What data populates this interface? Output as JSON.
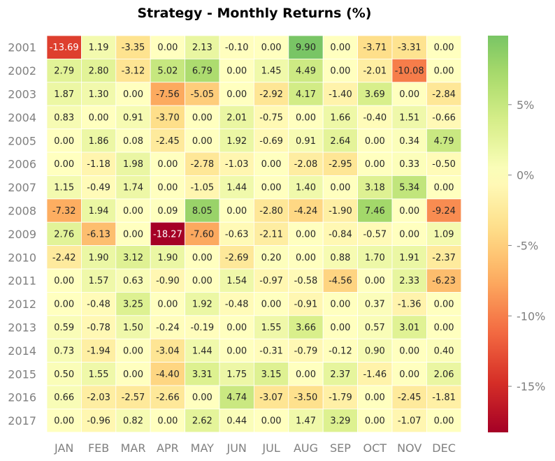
{
  "chart_data": {
    "type": "heatmap",
    "title": "Strategy - Monthly Returns (%)",
    "xlabel": "",
    "ylabel": "",
    "columns": [
      "JAN",
      "FEB",
      "MAR",
      "APR",
      "MAY",
      "JUN",
      "JUL",
      "AUG",
      "SEP",
      "OCT",
      "NOV",
      "DEC"
    ],
    "rows": [
      "2001",
      "2002",
      "2003",
      "2004",
      "2005",
      "2006",
      "2007",
      "2008",
      "2009",
      "2010",
      "2011",
      "2012",
      "2013",
      "2014",
      "2015",
      "2016",
      "2017"
    ],
    "values": [
      [
        -13.69,
        1.19,
        -3.35,
        0.0,
        2.13,
        -0.1,
        0.0,
        9.9,
        0.0,
        -3.71,
        -3.31,
        0.0
      ],
      [
        2.79,
        2.8,
        -3.12,
        5.02,
        6.79,
        0.0,
        1.45,
        4.49,
        0.0,
        -2.01,
        -10.08,
        0.0
      ],
      [
        1.87,
        1.3,
        0.0,
        -7.56,
        -5.05,
        0.0,
        -2.92,
        4.17,
        -1.4,
        3.69,
        0.0,
        -2.84
      ],
      [
        0.83,
        0.0,
        0.91,
        -3.7,
        0.0,
        2.01,
        -0.75,
        0.0,
        1.66,
        -0.4,
        1.51,
        -0.66
      ],
      [
        0.0,
        1.86,
        0.08,
        -2.45,
        0.0,
        1.92,
        -0.69,
        0.91,
        2.64,
        0.0,
        0.34,
        4.79
      ],
      [
        0.0,
        -1.18,
        1.98,
        0.0,
        -2.78,
        -1.03,
        0.0,
        -2.08,
        -2.95,
        0.0,
        0.33,
        -0.5
      ],
      [
        1.15,
        -0.49,
        1.74,
        0.0,
        -1.05,
        1.44,
        0.0,
        1.4,
        0.0,
        3.18,
        5.34,
        0.0
      ],
      [
        -7.32,
        1.94,
        0.0,
        0.09,
        8.05,
        0.0,
        -2.8,
        -4.24,
        -1.9,
        7.46,
        0.0,
        -9.24
      ],
      [
        2.76,
        -6.13,
        0.0,
        -18.27,
        -7.6,
        -0.63,
        -2.11,
        0.0,
        -0.84,
        -0.57,
        0.0,
        1.09
      ],
      [
        -2.42,
        1.9,
        3.12,
        1.9,
        0.0,
        -2.69,
        0.2,
        0.0,
        0.88,
        1.7,
        1.91,
        -2.37
      ],
      [
        0.0,
        1.57,
        0.63,
        -0.9,
        0.0,
        1.54,
        -0.97,
        -0.58,
        -4.56,
        0.0,
        2.33,
        -6.23
      ],
      [
        0.0,
        -0.48,
        3.25,
        0.0,
        1.92,
        -0.48,
        0.0,
        -0.91,
        0.0,
        0.37,
        -1.36,
        0.0
      ],
      [
        0.59,
        -0.78,
        1.5,
        -0.24,
        -0.19,
        0.0,
        1.55,
        3.66,
        0.0,
        0.57,
        3.01,
        0.0
      ],
      [
        0.73,
        -1.94,
        0.0,
        -3.04,
        1.44,
        0.0,
        -0.31,
        -0.79,
        -0.12,
        0.9,
        0.0,
        0.4
      ],
      [
        0.5,
        1.55,
        0.0,
        -4.4,
        3.31,
        1.75,
        3.15,
        0.0,
        2.37,
        -1.46,
        0.0,
        2.06
      ],
      [
        0.66,
        -2.03,
        -2.57,
        -2.66,
        0.0,
        4.74,
        -3.07,
        -3.5,
        -1.79,
        0.0,
        -2.45,
        -1.81
      ],
      [
        0.0,
        -0.96,
        0.82,
        0.0,
        2.62,
        0.44,
        0.0,
        1.47,
        3.29,
        0.0,
        -1.07,
        0.0
      ]
    ],
    "value_format": "0.00",
    "color_scale": {
      "colormap": "RdYlGn",
      "min": -18.27,
      "max": 9.9,
      "center": 0,
      "ticks": [
        5,
        0,
        -5,
        -10,
        -15
      ],
      "tick_labels": [
        "5%",
        "0%",
        "-5%",
        "-10%",
        "-15%"
      ]
    },
    "colorbar_position": "right",
    "grid": false,
    "legend": "none"
  }
}
